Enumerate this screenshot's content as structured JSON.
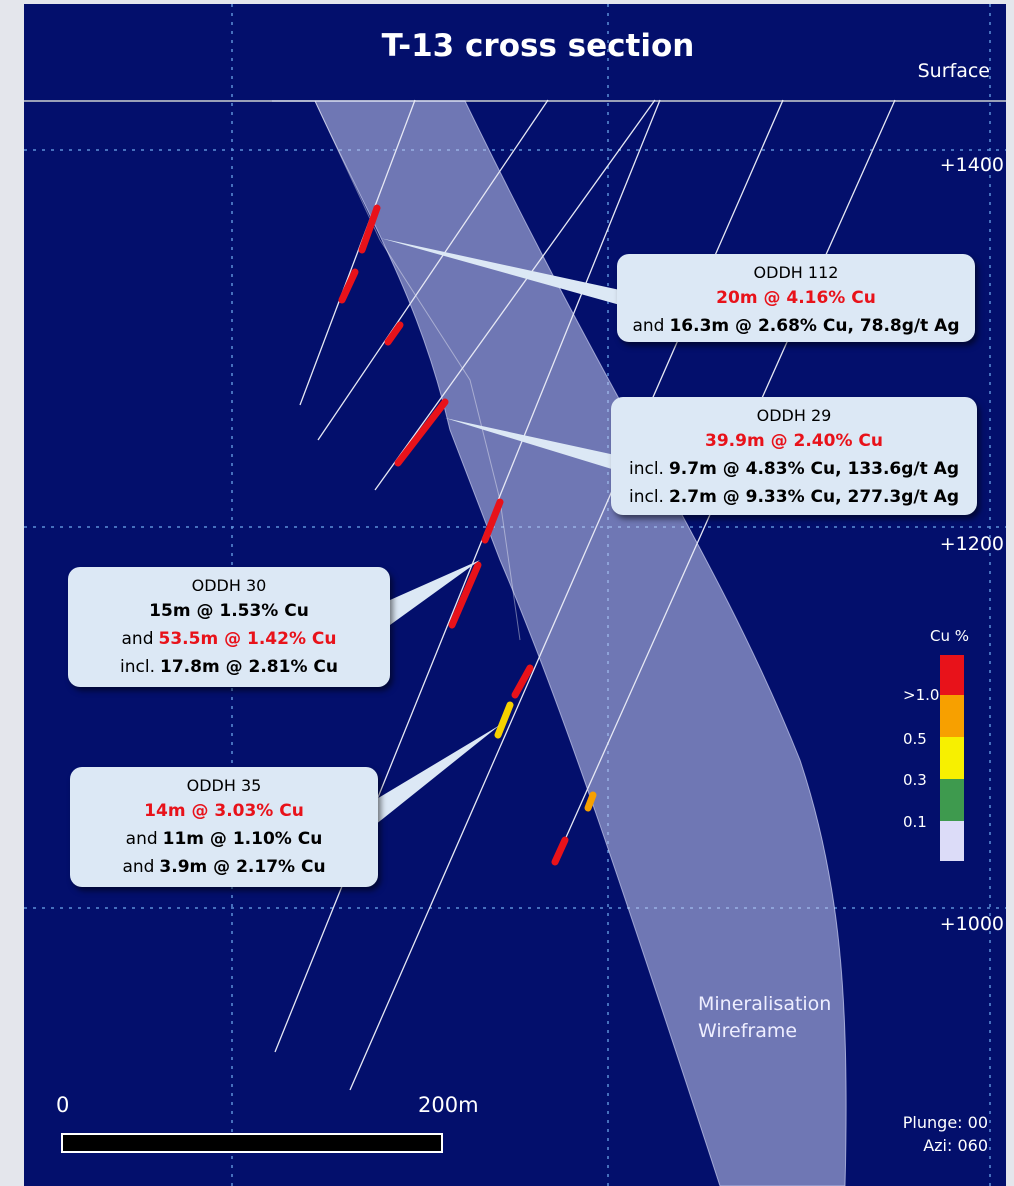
{
  "title": "T-13 cross section",
  "surface_label": "Surface",
  "elevation_labels": [
    "+1400",
    "+1200",
    "+1000"
  ],
  "callouts": [
    {
      "title": "ODDH 112",
      "lines": [
        {
          "text": "20m @ 4.16% Cu",
          "highlight": true
        },
        {
          "prefix": "and",
          "text": "16.3m @ 2.68% Cu, 78.8g/t Ag"
        }
      ]
    },
    {
      "title": "ODDH 29",
      "lines": [
        {
          "text": "39.9m @ 2.40% Cu",
          "highlight": true
        },
        {
          "prefix": "incl.",
          "text": "9.7m @ 4.83% Cu, 133.6g/t Ag"
        },
        {
          "prefix": "incl.",
          "text": "2.7m @ 9.33% Cu, 277.3g/t Ag"
        }
      ]
    },
    {
      "title": "ODDH 30",
      "lines": [
        {
          "text": "15m @ 1.53% Cu"
        },
        {
          "prefix": "and",
          "text": "53.5m @ 1.42% Cu",
          "highlight": true
        },
        {
          "prefix": "incl.",
          "text": "17.8m @ 2.81% Cu"
        }
      ]
    },
    {
      "title": "ODDH 35",
      "lines": [
        {
          "text": "14m @ 3.03% Cu",
          "highlight": true
        },
        {
          "prefix": "and",
          "text": "11m @ 1.10% Cu"
        },
        {
          "prefix": "and",
          "text": "3.9m @ 2.17% Cu"
        }
      ]
    }
  ],
  "legend": {
    "title": "Cu %",
    "labels": [
      ">1.0",
      "0.5",
      "0.3",
      "0.1"
    ]
  },
  "wireframe_label": [
    "Mineralisation",
    "Wireframe"
  ],
  "scale_bar": {
    "start": "0",
    "end": "200m"
  },
  "view": [
    "Plunge: 00",
    "Azi: 060"
  ]
}
